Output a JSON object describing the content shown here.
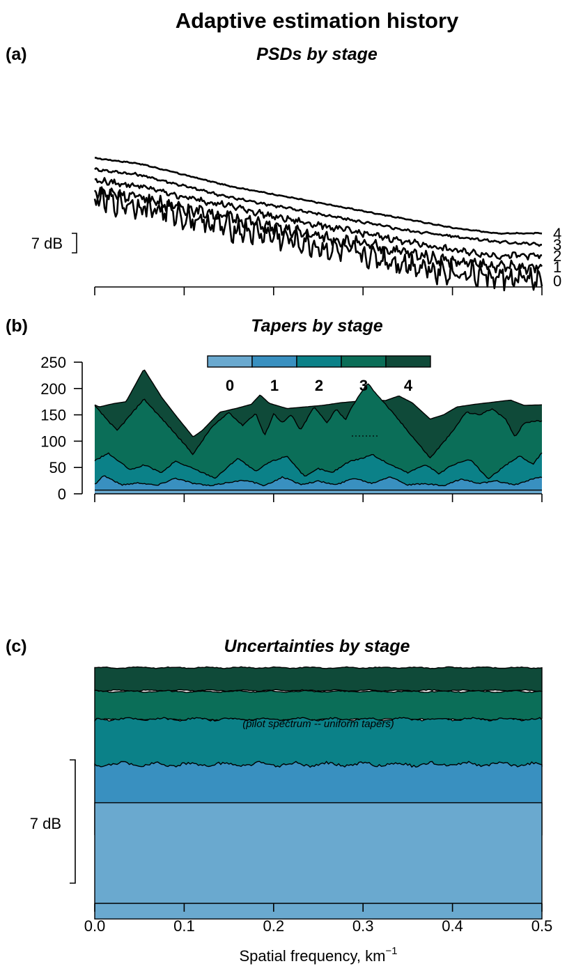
{
  "title": "Adaptive estimation history",
  "colors": {
    "stage0": "#6aa9cf",
    "stage1": "#3990c0",
    "stage2": "#0b8188",
    "stage3": "#0b6e58",
    "stage4": "#0f4a39",
    "line": "#000000"
  },
  "panels": {
    "a": {
      "tag": "(a)",
      "title": "PSDs by stage",
      "scale_label": "7 dB",
      "stage_labels": [
        "4",
        "3",
        "2",
        "1",
        "0"
      ]
    },
    "b": {
      "tag": "(b)",
      "title": "Tapers by stage",
      "legend": [
        "0",
        "1",
        "2",
        "3",
        "4"
      ]
    },
    "c": {
      "tag": "(c)",
      "title": "Uncertainties by stage",
      "scale_label": "7 dB",
      "note": "(pilot spectrum -- uniform tapers)"
    }
  },
  "x_axis": {
    "label": "Spatial frequency, km",
    "label_sup": "−1",
    "ticks": [
      "0.0",
      "0.1",
      "0.2",
      "0.3",
      "0.4",
      "0.5"
    ]
  },
  "chart_data": [
    {
      "type": "line",
      "panel": "a",
      "title": "PSDs by stage",
      "xlabel": "Spatial frequency, km−1",
      "xlim": [
        0,
        0.5
      ],
      "scale_bar_db": 7,
      "x": [
        0.0,
        0.05,
        0.1,
        0.15,
        0.2,
        0.25,
        0.3,
        0.35,
        0.4,
        0.45,
        0.5
      ],
      "series": [
        {
          "name": "4",
          "values": [
            42,
            40,
            36,
            32,
            29,
            26,
            23,
            20,
            17,
            15,
            15
          ]
        },
        {
          "name": "3",
          "values": [
            38,
            36,
            32,
            28,
            25,
            22,
            19,
            16,
            14,
            12,
            11
          ]
        },
        {
          "name": "2",
          "values": [
            34,
            32,
            28,
            25,
            21,
            18,
            15,
            12,
            9,
            7,
            7
          ]
        },
        {
          "name": "1",
          "values": [
            30,
            28,
            24,
            21,
            17,
            14,
            11,
            8,
            5,
            3,
            3
          ]
        },
        {
          "name": "0",
          "values": [
            27,
            25,
            21,
            17,
            14,
            10,
            7,
            4,
            1,
            -1,
            -2
          ]
        }
      ]
    },
    {
      "type": "area",
      "panel": "b",
      "title": "Tapers by stage",
      "xlim": [
        0,
        0.5
      ],
      "ylim": [
        0,
        250
      ],
      "yticks": [
        0,
        50,
        100,
        150,
        200,
        250
      ],
      "legend": "top-center",
      "series": [
        {
          "name": "0",
          "x": [
            0,
            0.5
          ],
          "values": [
            7,
            7
          ]
        },
        {
          "name": "1",
          "x": [
            0,
            0.01,
            0.03,
            0.05,
            0.07,
            0.09,
            0.11,
            0.13,
            0.15,
            0.17,
            0.19,
            0.21,
            0.23,
            0.25,
            0.27,
            0.29,
            0.31,
            0.33,
            0.35,
            0.37,
            0.39,
            0.41,
            0.43,
            0.45,
            0.47,
            0.49,
            0.5
          ],
          "values": [
            18,
            35,
            17,
            21,
            16,
            30,
            20,
            15,
            22,
            26,
            15,
            32,
            18,
            24,
            17,
            30,
            20,
            33,
            17,
            19,
            15,
            28,
            20,
            24,
            17,
            28,
            32
          ]
        },
        {
          "name": "2",
          "x": [
            0,
            0.015,
            0.04,
            0.055,
            0.075,
            0.09,
            0.11,
            0.135,
            0.16,
            0.18,
            0.195,
            0.215,
            0.235,
            0.25,
            0.265,
            0.285,
            0.3,
            0.31,
            0.325,
            0.35,
            0.37,
            0.385,
            0.4,
            0.42,
            0.44,
            0.46,
            0.475,
            0.49,
            0.5
          ],
          "values": [
            63,
            77,
            45,
            55,
            40,
            62,
            48,
            30,
            68,
            42,
            60,
            72,
            32,
            48,
            40,
            62,
            68,
            75,
            60,
            40,
            56,
            38,
            55,
            65,
            28,
            55,
            72,
            56,
            78
          ]
        },
        {
          "name": "3",
          "x": [
            0,
            0.025,
            0.055,
            0.085,
            0.11,
            0.13,
            0.15,
            0.165,
            0.18,
            0.19,
            0.2,
            0.21,
            0.22,
            0.23,
            0.245,
            0.26,
            0.27,
            0.28,
            0.29,
            0.305,
            0.34,
            0.375,
            0.4,
            0.415,
            0.43,
            0.445,
            0.46,
            0.47,
            0.48,
            0.49,
            0.5
          ],
          "values": [
            167,
            120,
            180,
            124,
            75,
            125,
            155,
            130,
            153,
            110,
            152,
            135,
            150,
            120,
            165,
            135,
            162,
            140,
            172,
            210,
            140,
            68,
            118,
            155,
            150,
            162,
            140,
            108,
            135,
            138,
            138
          ]
        },
        {
          "name": "4",
          "x": [
            0,
            0.005,
            0.02,
            0.035,
            0.055,
            0.075,
            0.09,
            0.11,
            0.12,
            0.14,
            0.16,
            0.175,
            0.185,
            0.195,
            0.215,
            0.235,
            0.255,
            0.275,
            0.295,
            0.305,
            0.325,
            0.34,
            0.355,
            0.375,
            0.39,
            0.405,
            0.425,
            0.45,
            0.465,
            0.48,
            0.5
          ],
          "values": [
            169,
            165,
            171,
            175,
            237,
            183,
            150,
            108,
            120,
            155,
            163,
            170,
            188,
            172,
            162,
            165,
            168,
            173,
            176,
            180,
            177,
            186,
            173,
            142,
            150,
            165,
            170,
            175,
            178,
            168,
            169
          ]
        }
      ]
    },
    {
      "type": "area",
      "panel": "c",
      "title": "Uncertainties by stage",
      "xlabel": "Spatial frequency, km−1",
      "xlim": [
        0,
        0.5
      ],
      "scale_bar_db": 7,
      "series": [
        {
          "name": "4",
          "band_width_db": 1.3
        },
        {
          "name": "3",
          "band_width_db": 1.6
        },
        {
          "name": "2",
          "band_width_db": 2.8
        },
        {
          "name": "1",
          "band_width_db": 4.0
        },
        {
          "name": "0",
          "band_width_db": 6.6
        }
      ]
    }
  ]
}
